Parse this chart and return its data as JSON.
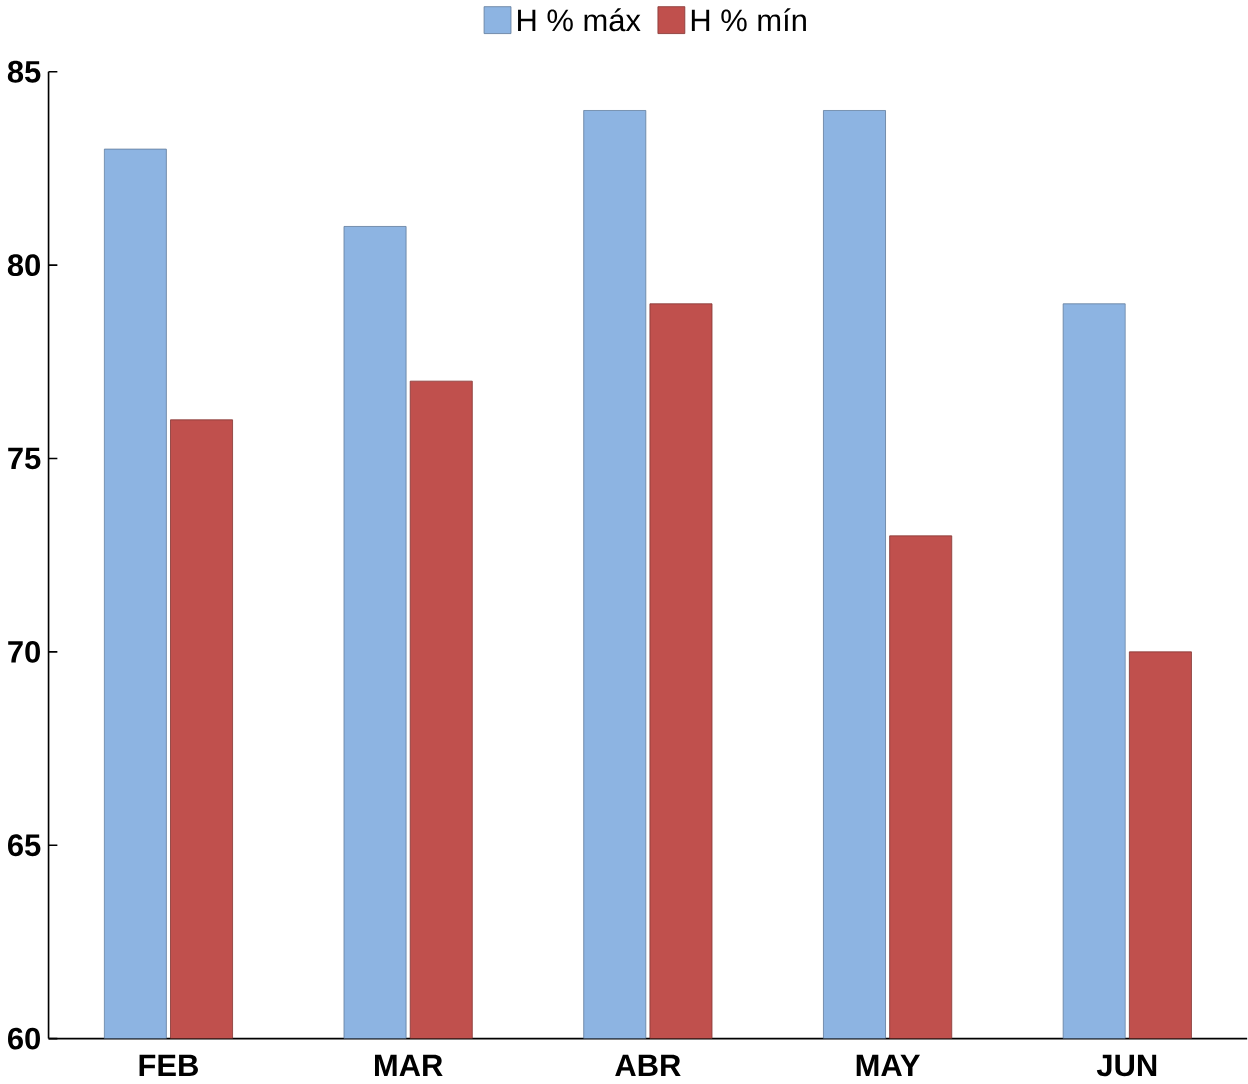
{
  "chart_data": {
    "type": "bar",
    "categories": [
      "FEB",
      "MAR",
      "ABR",
      "MAY",
      "JUN"
    ],
    "series": [
      {
        "name": "H % máx",
        "color": "#8db4e2",
        "values": [
          83,
          81,
          84,
          84,
          79
        ]
      },
      {
        "name": "H % mín",
        "color": "#c0504d",
        "values": [
          76,
          77,
          79,
          73,
          70
        ]
      }
    ],
    "ylim": [
      60,
      85
    ],
    "yticks": [
      60,
      65,
      70,
      75,
      80,
      85
    ],
    "grid": false,
    "legend": "top"
  }
}
